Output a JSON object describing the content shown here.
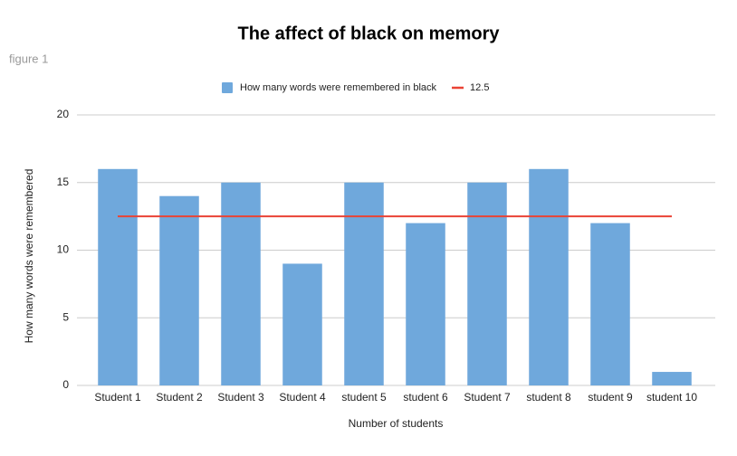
{
  "chart_data": {
    "type": "bar",
    "title": "The affect of black on memory",
    "subtitle": "figure 1",
    "x_label": "Number of students",
    "y_label": "How many words were remembered",
    "categories": [
      "Student 1",
      "Student 2",
      "Student 3",
      "Student 4",
      "student 5",
      "student 6",
      "Student 7",
      "student 8",
      "student 9",
      "student 10"
    ],
    "series": [
      {
        "name": "How many words were remembered in black",
        "color": "#6fa8dc",
        "type": "bar",
        "values": [
          16,
          14,
          15,
          9,
          15,
          12,
          15,
          16,
          12,
          1
        ]
      },
      {
        "name": "12.5",
        "color": "#ea4335",
        "type": "line",
        "values": [
          12.5,
          12.5,
          12.5,
          12.5,
          12.5,
          12.5,
          12.5,
          12.5,
          12.5,
          12.5
        ]
      }
    ],
    "ylim": [
      0,
      20
    ],
    "yticks": [
      0,
      5,
      10,
      15,
      20
    ],
    "grid": true,
    "legend": "top"
  }
}
